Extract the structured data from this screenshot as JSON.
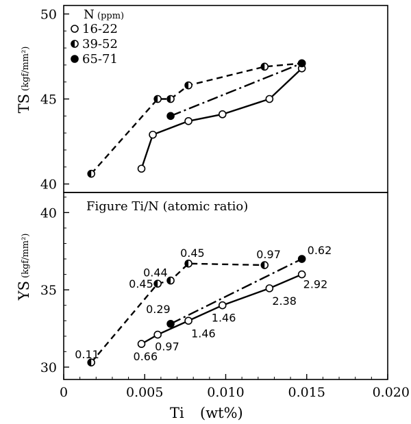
{
  "chart_data": [
    {
      "type": "line",
      "title": "",
      "ylabel": "TS",
      "yunit": "(kgf/mm²)",
      "xlim": [
        0,
        0.02
      ],
      "ylim": [
        39.5,
        50.5
      ],
      "yticks": [
        40,
        45,
        50
      ],
      "legend": {
        "title": "N",
        "title_unit": "(ppm)",
        "placement": "top-left",
        "entries": [
          {
            "label": "16-22",
            "marker": "open",
            "linestyle": "solid"
          },
          {
            "label": "39-52",
            "marker": "half",
            "linestyle": "dashed"
          },
          {
            "label": "65-71",
            "marker": "filled",
            "linestyle": "dashdot"
          }
        ]
      },
      "series": [
        {
          "name": "16-22",
          "marker": "open",
          "linestyle": "solid",
          "x": [
            0.0048,
            0.0055,
            0.0077,
            0.0098,
            0.0127,
            0.0147
          ],
          "y": [
            40.9,
            42.9,
            43.7,
            44.1,
            45.0,
            46.8
          ]
        },
        {
          "name": "39-52",
          "marker": "half",
          "linestyle": "dashed",
          "x": [
            0.0017,
            0.0058,
            0.0066,
            0.0077,
            0.0124,
            0.0147
          ],
          "y": [
            40.6,
            45.0,
            45.0,
            45.8,
            46.9,
            47.1
          ]
        },
        {
          "name": "65-71",
          "marker": "filled",
          "linestyle": "dashdot",
          "x": [
            0.0066,
            0.0147
          ],
          "y": [
            44.0,
            47.1
          ]
        }
      ]
    },
    {
      "type": "line",
      "title": "",
      "ylabel": "YS",
      "yunit": "(kgf/mm²)",
      "xlabel": "Ti",
      "xunit": "(wt%)",
      "xlim": [
        0,
        0.02
      ],
      "xticks": [
        "0",
        "0.005",
        "0.010",
        "0.015",
        "0.020"
      ],
      "ylim": [
        29.2,
        41.3
      ],
      "yticks": [
        30,
        35,
        40
      ],
      "annotation": "Figure Ti/N (atomic ratio)",
      "series": [
        {
          "name": "16-22",
          "marker": "open",
          "linestyle": "solid",
          "x": [
            0.0048,
            0.0058,
            0.0077,
            0.0098,
            0.0127,
            0.0147
          ],
          "y": [
            31.5,
            32.1,
            33.0,
            34.0,
            35.1,
            36.0
          ],
          "labels": [
            "0.66",
            "0.97",
            "1.46",
            "1.46",
            "2.38",
            "2.92"
          ]
        },
        {
          "name": "39-52",
          "marker": "half",
          "linestyle": "dashed",
          "x": [
            0.0017,
            0.0058,
            0.0066,
            0.0077,
            0.0124
          ],
          "y": [
            30.3,
            35.4,
            35.6,
            36.7,
            36.6
          ],
          "labels": [
            "0.11",
            "0.45",
            "0.44",
            "0.45",
            "0.97"
          ]
        },
        {
          "name": "65-71",
          "marker": "filled",
          "linestyle": "dashdot",
          "x": [
            0.0066,
            0.0147
          ],
          "y": [
            32.8,
            37.0
          ],
          "labels": [
            "0.29",
            "0.62"
          ]
        }
      ]
    }
  ]
}
